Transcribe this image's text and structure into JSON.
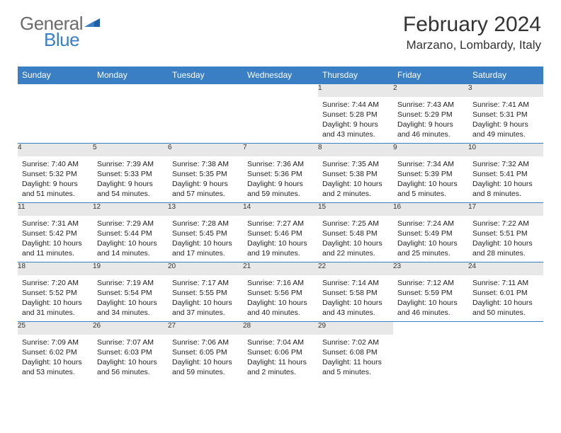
{
  "brand": {
    "part1": "General",
    "part2": "Blue"
  },
  "title": "February 2024",
  "location": "Marzano, Lombardy, Italy",
  "colors": {
    "header_bg": "#3a7fc4",
    "daynum_bg": "#e8e8e8",
    "border": "#3a7fc4",
    "text": "#333333",
    "logo_gray": "#6b6b6b",
    "logo_blue": "#3a7fc4"
  },
  "weekdays": [
    "Sunday",
    "Monday",
    "Tuesday",
    "Wednesday",
    "Thursday",
    "Friday",
    "Saturday"
  ],
  "weeks": [
    [
      null,
      null,
      null,
      null,
      {
        "n": "1",
        "sr": "7:44 AM",
        "ss": "5:28 PM",
        "dl": "9 hours and 43 minutes."
      },
      {
        "n": "2",
        "sr": "7:43 AM",
        "ss": "5:29 PM",
        "dl": "9 hours and 46 minutes."
      },
      {
        "n": "3",
        "sr": "7:41 AM",
        "ss": "5:31 PM",
        "dl": "9 hours and 49 minutes."
      }
    ],
    [
      {
        "n": "4",
        "sr": "7:40 AM",
        "ss": "5:32 PM",
        "dl": "9 hours and 51 minutes."
      },
      {
        "n": "5",
        "sr": "7:39 AM",
        "ss": "5:33 PM",
        "dl": "9 hours and 54 minutes."
      },
      {
        "n": "6",
        "sr": "7:38 AM",
        "ss": "5:35 PM",
        "dl": "9 hours and 57 minutes."
      },
      {
        "n": "7",
        "sr": "7:36 AM",
        "ss": "5:36 PM",
        "dl": "9 hours and 59 minutes."
      },
      {
        "n": "8",
        "sr": "7:35 AM",
        "ss": "5:38 PM",
        "dl": "10 hours and 2 minutes."
      },
      {
        "n": "9",
        "sr": "7:34 AM",
        "ss": "5:39 PM",
        "dl": "10 hours and 5 minutes."
      },
      {
        "n": "10",
        "sr": "7:32 AM",
        "ss": "5:41 PM",
        "dl": "10 hours and 8 minutes."
      }
    ],
    [
      {
        "n": "11",
        "sr": "7:31 AM",
        "ss": "5:42 PM",
        "dl": "10 hours and 11 minutes."
      },
      {
        "n": "12",
        "sr": "7:29 AM",
        "ss": "5:44 PM",
        "dl": "10 hours and 14 minutes."
      },
      {
        "n": "13",
        "sr": "7:28 AM",
        "ss": "5:45 PM",
        "dl": "10 hours and 17 minutes."
      },
      {
        "n": "14",
        "sr": "7:27 AM",
        "ss": "5:46 PM",
        "dl": "10 hours and 19 minutes."
      },
      {
        "n": "15",
        "sr": "7:25 AM",
        "ss": "5:48 PM",
        "dl": "10 hours and 22 minutes."
      },
      {
        "n": "16",
        "sr": "7:24 AM",
        "ss": "5:49 PM",
        "dl": "10 hours and 25 minutes."
      },
      {
        "n": "17",
        "sr": "7:22 AM",
        "ss": "5:51 PM",
        "dl": "10 hours and 28 minutes."
      }
    ],
    [
      {
        "n": "18",
        "sr": "7:20 AM",
        "ss": "5:52 PM",
        "dl": "10 hours and 31 minutes."
      },
      {
        "n": "19",
        "sr": "7:19 AM",
        "ss": "5:54 PM",
        "dl": "10 hours and 34 minutes."
      },
      {
        "n": "20",
        "sr": "7:17 AM",
        "ss": "5:55 PM",
        "dl": "10 hours and 37 minutes."
      },
      {
        "n": "21",
        "sr": "7:16 AM",
        "ss": "5:56 PM",
        "dl": "10 hours and 40 minutes."
      },
      {
        "n": "22",
        "sr": "7:14 AM",
        "ss": "5:58 PM",
        "dl": "10 hours and 43 minutes."
      },
      {
        "n": "23",
        "sr": "7:12 AM",
        "ss": "5:59 PM",
        "dl": "10 hours and 46 minutes."
      },
      {
        "n": "24",
        "sr": "7:11 AM",
        "ss": "6:01 PM",
        "dl": "10 hours and 50 minutes."
      }
    ],
    [
      {
        "n": "25",
        "sr": "7:09 AM",
        "ss": "6:02 PM",
        "dl": "10 hours and 53 minutes."
      },
      {
        "n": "26",
        "sr": "7:07 AM",
        "ss": "6:03 PM",
        "dl": "10 hours and 56 minutes."
      },
      {
        "n": "27",
        "sr": "7:06 AM",
        "ss": "6:05 PM",
        "dl": "10 hours and 59 minutes."
      },
      {
        "n": "28",
        "sr": "7:04 AM",
        "ss": "6:06 PM",
        "dl": "11 hours and 2 minutes."
      },
      {
        "n": "29",
        "sr": "7:02 AM",
        "ss": "6:08 PM",
        "dl": "11 hours and 5 minutes."
      },
      null,
      null
    ]
  ],
  "labels": {
    "sunrise": "Sunrise: ",
    "sunset": "Sunset: ",
    "daylight": "Daylight: "
  }
}
